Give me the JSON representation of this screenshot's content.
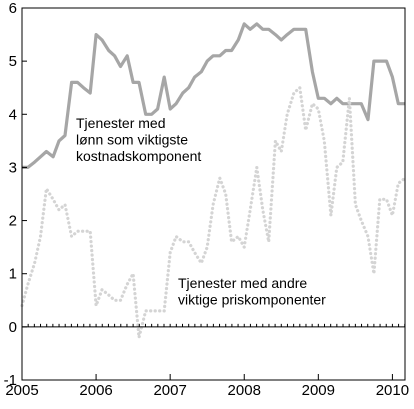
{
  "chart_data": {
    "type": "line",
    "title": "",
    "xlabel": "",
    "ylabel": "",
    "xlim": [
      2005.0,
      2010.17
    ],
    "ylim": [
      -1,
      6
    ],
    "grid": false,
    "legend": "none",
    "x_tick_labels": [
      "2005",
      "2006",
      "2007",
      "2008",
      "2009",
      "2010"
    ],
    "y_tick_labels": [
      "-1",
      "0",
      "1",
      "2",
      "3",
      "4",
      "5",
      "6"
    ],
    "annotations": [
      {
        "lines": [
          "Tjenester med",
          "lønn som viktigste",
          "kostnadskomponent"
        ],
        "series": 0
      },
      {
        "lines": [
          "Tjenester med andre",
          "viktige priskomponenter"
        ],
        "series": 1
      }
    ],
    "series": [
      {
        "name": "Tjenester med lønn som viktigste kostnadskomponent",
        "color": "#a6a6a6",
        "style": "solid",
        "x": [
          2005.0,
          2005.08,
          2005.17,
          2005.25,
          2005.33,
          2005.42,
          2005.5,
          2005.58,
          2005.67,
          2005.75,
          2005.83,
          2005.92,
          2006.0,
          2006.08,
          2006.17,
          2006.25,
          2006.33,
          2006.42,
          2006.5,
          2006.58,
          2006.67,
          2006.75,
          2006.83,
          2006.92,
          2007.0,
          2007.08,
          2007.17,
          2007.25,
          2007.33,
          2007.42,
          2007.5,
          2007.58,
          2007.67,
          2007.75,
          2007.83,
          2007.92,
          2008.0,
          2008.08,
          2008.17,
          2008.25,
          2008.33,
          2008.42,
          2008.5,
          2008.58,
          2008.67,
          2008.75,
          2008.83,
          2008.92,
          2009.0,
          2009.08,
          2009.17,
          2009.25,
          2009.33,
          2009.42,
          2009.5,
          2009.58,
          2009.67,
          2009.75,
          2009.83,
          2009.92,
          2010.0,
          2010.08,
          2010.17
        ],
        "values": [
          3.0,
          3.0,
          3.1,
          3.2,
          3.3,
          3.2,
          3.5,
          3.6,
          4.6,
          4.6,
          4.5,
          4.4,
          5.5,
          5.4,
          5.2,
          5.1,
          4.9,
          5.1,
          4.6,
          4.6,
          4.0,
          4.0,
          4.1,
          4.7,
          4.1,
          4.2,
          4.4,
          4.5,
          4.7,
          4.8,
          5.0,
          5.1,
          5.1,
          5.2,
          5.2,
          5.4,
          5.7,
          5.6,
          5.7,
          5.6,
          5.6,
          5.5,
          5.4,
          5.5,
          5.6,
          5.6,
          5.6,
          4.8,
          4.3,
          4.3,
          4.2,
          4.3,
          4.2,
          4.2,
          4.2,
          4.2,
          3.9,
          5.0,
          5.0,
          5.0,
          4.7,
          4.2,
          4.2
        ]
      },
      {
        "name": "Tjenester med andre viktige priskomponenter",
        "color": "#d4d4d4",
        "style": "dotted",
        "x": [
          2005.0,
          2005.08,
          2005.17,
          2005.25,
          2005.33,
          2005.42,
          2005.5,
          2005.58,
          2005.67,
          2005.75,
          2005.83,
          2005.92,
          2006.0,
          2006.08,
          2006.17,
          2006.25,
          2006.33,
          2006.42,
          2006.5,
          2006.58,
          2006.67,
          2006.75,
          2006.83,
          2006.92,
          2007.0,
          2007.08,
          2007.17,
          2007.25,
          2007.33,
          2007.42,
          2007.5,
          2007.58,
          2007.67,
          2007.75,
          2007.83,
          2007.92,
          2008.0,
          2008.08,
          2008.17,
          2008.25,
          2008.33,
          2008.42,
          2008.5,
          2008.58,
          2008.67,
          2008.75,
          2008.83,
          2008.92,
          2009.0,
          2009.08,
          2009.17,
          2009.25,
          2009.33,
          2009.42,
          2009.5,
          2009.58,
          2009.67,
          2009.75,
          2009.83,
          2009.92,
          2010.0,
          2010.08,
          2010.17
        ],
        "values": [
          0.4,
          0.8,
          1.2,
          1.7,
          2.6,
          2.4,
          2.2,
          2.3,
          1.7,
          1.8,
          1.8,
          1.8,
          0.4,
          0.7,
          0.6,
          0.5,
          0.5,
          0.8,
          1.0,
          -0.2,
          0.3,
          0.3,
          0.3,
          0.3,
          1.4,
          1.7,
          1.6,
          1.6,
          1.4,
          1.2,
          1.5,
          2.3,
          2.8,
          2.5,
          1.6,
          1.7,
          1.5,
          2.2,
          3.0,
          2.2,
          1.6,
          3.5,
          3.3,
          4.0,
          4.4,
          4.5,
          3.7,
          4.2,
          4.1,
          3.5,
          2.1,
          3.0,
          3.1,
          4.3,
          2.3,
          2.0,
          1.7,
          1.0,
          2.4,
          2.4,
          2.1,
          2.7,
          2.8
        ]
      }
    ]
  }
}
